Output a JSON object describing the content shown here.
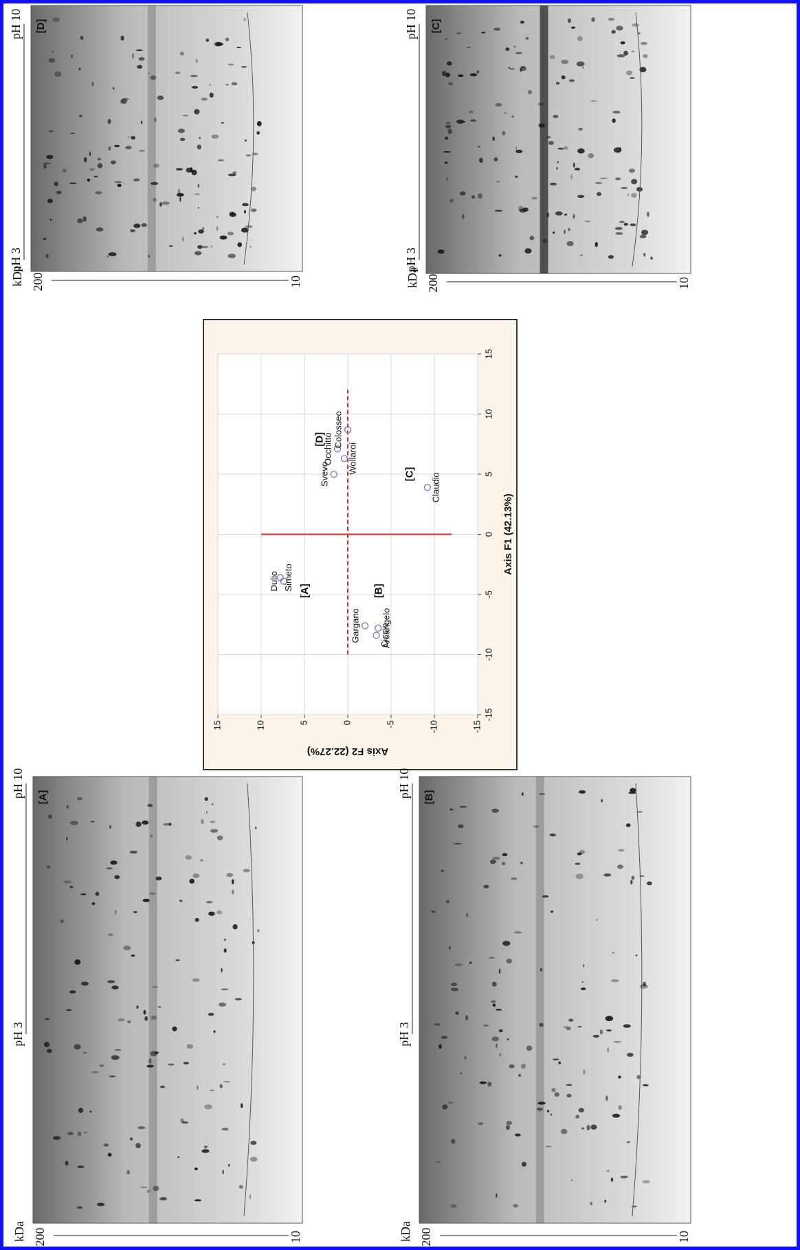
{
  "chart_data": {
    "type": "scatter",
    "x_label": "Axis F1 (42.13%)",
    "y_label": "Axis F2 (22.27%)",
    "xlim": [
      -15,
      15
    ],
    "ylim": [
      -15,
      15
    ],
    "xticks": [
      -15,
      -10,
      -5,
      0,
      5,
      10,
      15
    ],
    "yticks": [
      -15,
      -10,
      -5,
      0,
      5,
      10,
      15
    ],
    "grid": true,
    "color": "#7a70c8",
    "point_labels": [
      "Dulio",
      "Simeto",
      "Gargano",
      "Ciccio",
      "Arcangelo",
      "Claudio",
      "Svevo",
      "Wollaroi",
      "Occhitto",
      "Colosseo"
    ],
    "x": [
      -3.9,
      -3.6,
      -7.6,
      -8.4,
      -7.8,
      3.9,
      5.0,
      6.3,
      7.1,
      8.7
    ],
    "values": [
      7.4,
      7.8,
      -2.0,
      -3.3,
      -3.5,
      -9.2,
      1.6,
      0.4,
      1.2,
      0.0
    ],
    "annotations": [
      {
        "text": "[A]",
        "x": -4.7,
        "y": 4.9
      },
      {
        "text": "[B]",
        "x": -4.7,
        "y": -3.6
      },
      {
        "text": "[C]",
        "x": 5.0,
        "y": -7.2
      },
      {
        "text": "[D]",
        "x": 7.9,
        "y": 3.2
      }
    ],
    "reference_lines": [
      {
        "x": [
          -10,
          12
        ],
        "y": [
          0,
          0
        ],
        "dashed": true,
        "color": "#e02828"
      },
      {
        "x": [
          0,
          0
        ],
        "y": [
          10,
          -12
        ],
        "dashed": false,
        "color": "#e02828"
      }
    ]
  },
  "gels": [
    {
      "label": "[D]",
      "ph_high": "pH 10",
      "ph_low": "pH 3",
      "kda": "kDa",
      "kda_high": 200,
      "kda_low": 10
    },
    {
      "label": "[C]",
      "ph_high": "pH 10",
      "ph_low": "pH 3",
      "kda": "kDa",
      "kda_high": 200,
      "kda_low": 10
    },
    {
      "label": "[A]",
      "ph_high": "pH 10",
      "ph_low": "pH 3",
      "kda": "kDa",
      "kda_high": 200,
      "kda_low": 10
    },
    {
      "label": "[B]",
      "ph_high": "pH 10",
      "ph_low": "pH 3",
      "kda": "kDa",
      "kda_high": 200,
      "kda_low": 10
    }
  ]
}
